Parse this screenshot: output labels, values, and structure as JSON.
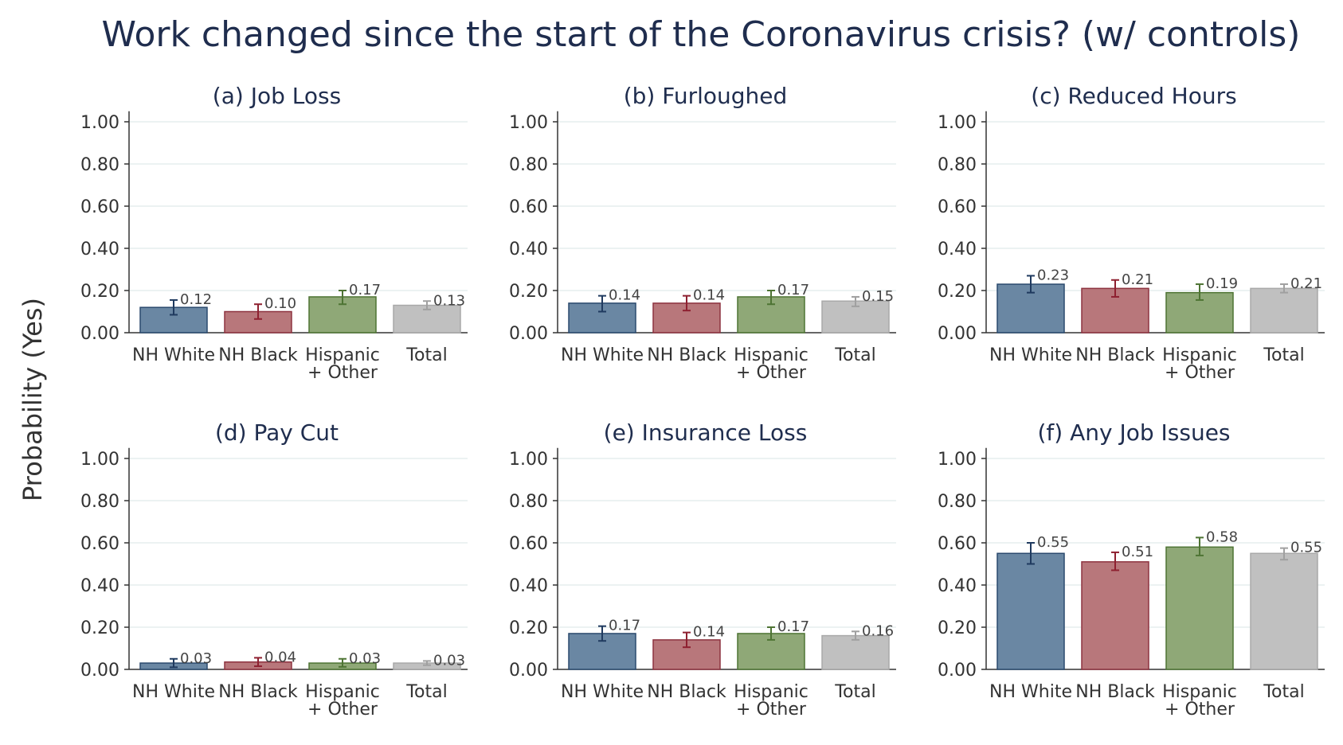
{
  "title": "Work changed since the start of the Coronavirus crisis? (w/ controls)",
  "ylabel": "Probability (Yes)",
  "colors": {
    "title": "#1f2d4e",
    "axis": "#333333",
    "grid": "#e6eeee",
    "series": [
      "#6a87a3",
      "#b8777b",
      "#8fa877",
      "#c0c0c0"
    ],
    "series_stroke": [
      "#2b4a6e",
      "#8e3340",
      "#4e7434",
      "#a9a9a9"
    ],
    "error": [
      "#1f3a5f",
      "#8e2030",
      "#4e7434",
      "#a0a0a0"
    ]
  },
  "chart_data": [
    {
      "type": "bar",
      "title": "(a) Job Loss",
      "categories": [
        "NH White",
        "NH Black",
        "Hispanic\n+ Other",
        "Total"
      ],
      "values": [
        0.12,
        0.1,
        0.17,
        0.13
      ],
      "ci_low": [
        0.085,
        0.065,
        0.135,
        0.11
      ],
      "ci_high": [
        0.155,
        0.135,
        0.2,
        0.15
      ],
      "value_labels": [
        "0.12",
        "0.10",
        "0.17",
        "0.13"
      ],
      "yticks": [
        "0.00",
        "0.20",
        "0.40",
        "0.60",
        "0.80",
        "1.00"
      ],
      "ylim": [
        0,
        1.05
      ]
    },
    {
      "type": "bar",
      "title": "(b) Furloughed",
      "categories": [
        "NH White",
        "NH Black",
        "Hispanic\n+ Other",
        "Total"
      ],
      "values": [
        0.14,
        0.14,
        0.17,
        0.15
      ],
      "ci_low": [
        0.1,
        0.105,
        0.135,
        0.125
      ],
      "ci_high": [
        0.175,
        0.175,
        0.2,
        0.17
      ],
      "value_labels": [
        "0.14",
        "0.14",
        "0.17",
        "0.15"
      ],
      "yticks": [
        "0.00",
        "0.20",
        "0.40",
        "0.60",
        "0.80",
        "1.00"
      ],
      "ylim": [
        0,
        1.05
      ]
    },
    {
      "type": "bar",
      "title": "(c) Reduced Hours",
      "categories": [
        "NH White",
        "NH Black",
        "Hispanic\n+ Other",
        "Total"
      ],
      "values": [
        0.23,
        0.21,
        0.19,
        0.21
      ],
      "ci_low": [
        0.19,
        0.17,
        0.155,
        0.19
      ],
      "ci_high": [
        0.27,
        0.25,
        0.23,
        0.23
      ],
      "value_labels": [
        "0.23",
        "0.21",
        "0.19",
        "0.21"
      ],
      "yticks": [
        "0.00",
        "0.20",
        "0.40",
        "0.60",
        "0.80",
        "1.00"
      ],
      "ylim": [
        0,
        1.05
      ]
    },
    {
      "type": "bar",
      "title": "(d) Pay Cut",
      "categories": [
        "NH White",
        "NH Black",
        "Hispanic\n+ Other",
        "Total"
      ],
      "values": [
        0.03,
        0.035,
        0.03,
        0.03
      ],
      "ci_low": [
        0.01,
        0.015,
        0.012,
        0.02
      ],
      "ci_high": [
        0.05,
        0.055,
        0.05,
        0.04
      ],
      "value_labels": [
        "0.03",
        "0.04",
        "0.03",
        "0.03"
      ],
      "yticks": [
        "0.00",
        "0.20",
        "0.40",
        "0.60",
        "0.80",
        "1.00"
      ],
      "ylim": [
        0,
        1.05
      ]
    },
    {
      "type": "bar",
      "title": "(e) Insurance Loss",
      "categories": [
        "NH White",
        "NH Black",
        "Hispanic\n+ Other",
        "Total"
      ],
      "values": [
        0.17,
        0.14,
        0.17,
        0.16
      ],
      "ci_low": [
        0.135,
        0.105,
        0.14,
        0.14
      ],
      "ci_high": [
        0.205,
        0.175,
        0.2,
        0.18
      ],
      "value_labels": [
        "0.17",
        "0.14",
        "0.17",
        "0.16"
      ],
      "yticks": [
        "0.00",
        "0.20",
        "0.40",
        "0.60",
        "0.80",
        "1.00"
      ],
      "ylim": [
        0,
        1.05
      ]
    },
    {
      "type": "bar",
      "title": "(f) Any Job Issues",
      "categories": [
        "NH White",
        "NH Black",
        "Hispanic\n+ Other",
        "Total"
      ],
      "values": [
        0.55,
        0.51,
        0.58,
        0.55
      ],
      "ci_low": [
        0.5,
        0.47,
        0.54,
        0.52
      ],
      "ci_high": [
        0.6,
        0.555,
        0.625,
        0.575
      ],
      "value_labels": [
        "0.55",
        "0.51",
        "0.58",
        "0.55"
      ],
      "yticks": [
        "0.00",
        "0.20",
        "0.40",
        "0.60",
        "0.80",
        "1.00"
      ],
      "ylim": [
        0,
        1.05
      ]
    }
  ]
}
